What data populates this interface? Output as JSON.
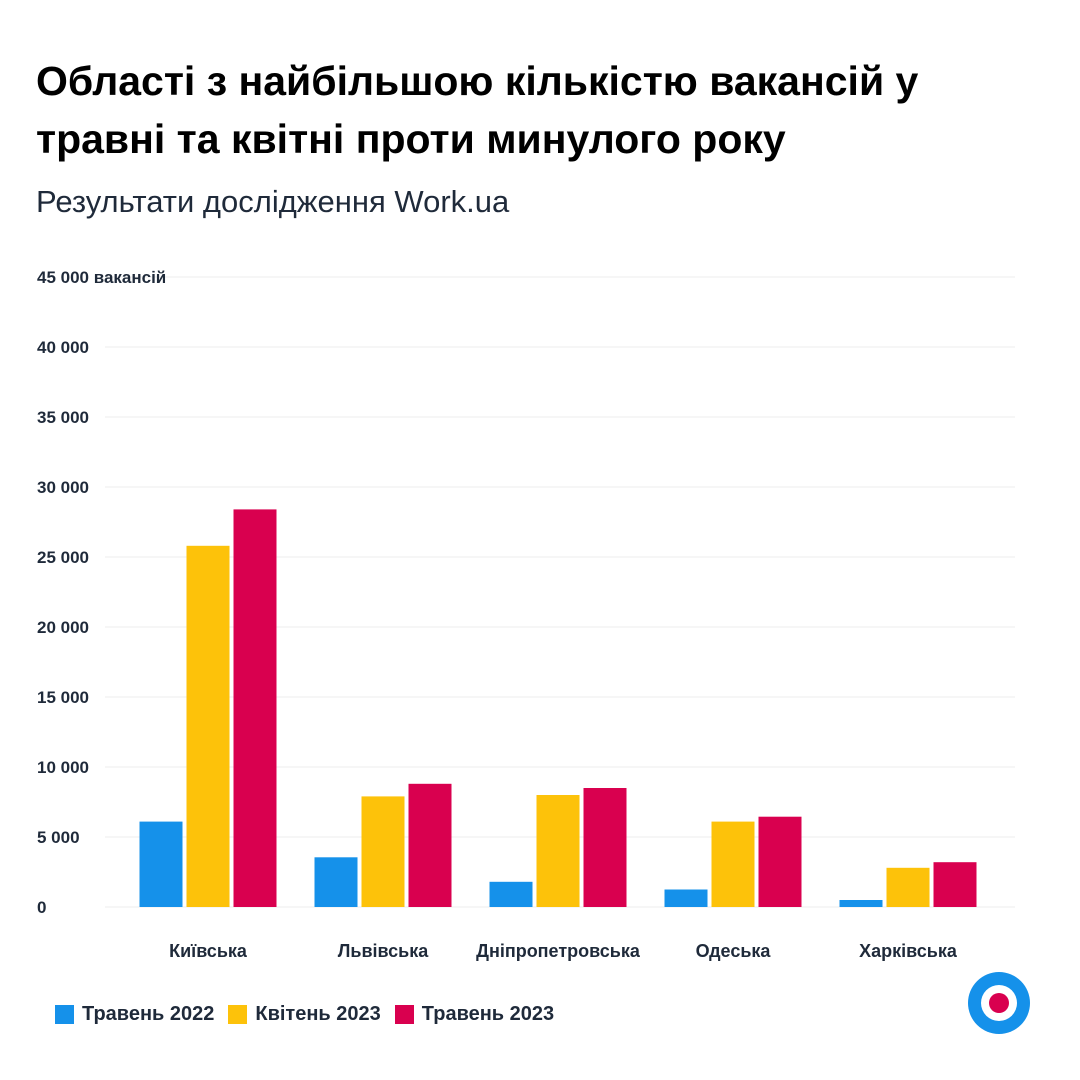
{
  "header": {
    "title": "Області з найбільшою кількістю вакансій у травні та квітні проти минулого року",
    "subtitle": "Результати дослідження Work.ua"
  },
  "colors": {
    "series_2022_may": "#1591ea",
    "series_2023_apr": "#fdc20a",
    "series_2023_may": "#d9004f",
    "grid": "#eeeeee"
  },
  "logo": {
    "icon": "work-ua-logo-icon"
  },
  "chart_data": {
    "type": "bar",
    "categories": [
      "Київська",
      "Львівська",
      "Дніпропетровська",
      "Одеська",
      "Харківська"
    ],
    "series": [
      {
        "name": "Травень 2022",
        "values": [
          6100,
          3550,
          1800,
          1250,
          500
        ]
      },
      {
        "name": "Квітень 2023",
        "values": [
          25800,
          7900,
          8000,
          6100,
          2800
        ]
      },
      {
        "name": "Травень 2023",
        "values": [
          28400,
          8800,
          8500,
          6450,
          3200
        ]
      }
    ],
    "y_ticks": [
      {
        "value": 0,
        "label": "0"
      },
      {
        "value": 5000,
        "label": "5 000"
      },
      {
        "value": 10000,
        "label": "10 000"
      },
      {
        "value": 15000,
        "label": "15 000"
      },
      {
        "value": 20000,
        "label": "20 000"
      },
      {
        "value": 25000,
        "label": "25 000"
      },
      {
        "value": 30000,
        "label": "30 000"
      },
      {
        "value": 35000,
        "label": "35 000"
      },
      {
        "value": 40000,
        "label": "40 000"
      },
      {
        "value": 45000,
        "label": "45 000 вакансій"
      }
    ],
    "ylim": [
      0,
      45000
    ],
    "grid": true,
    "legend_position": "bottom-left"
  }
}
